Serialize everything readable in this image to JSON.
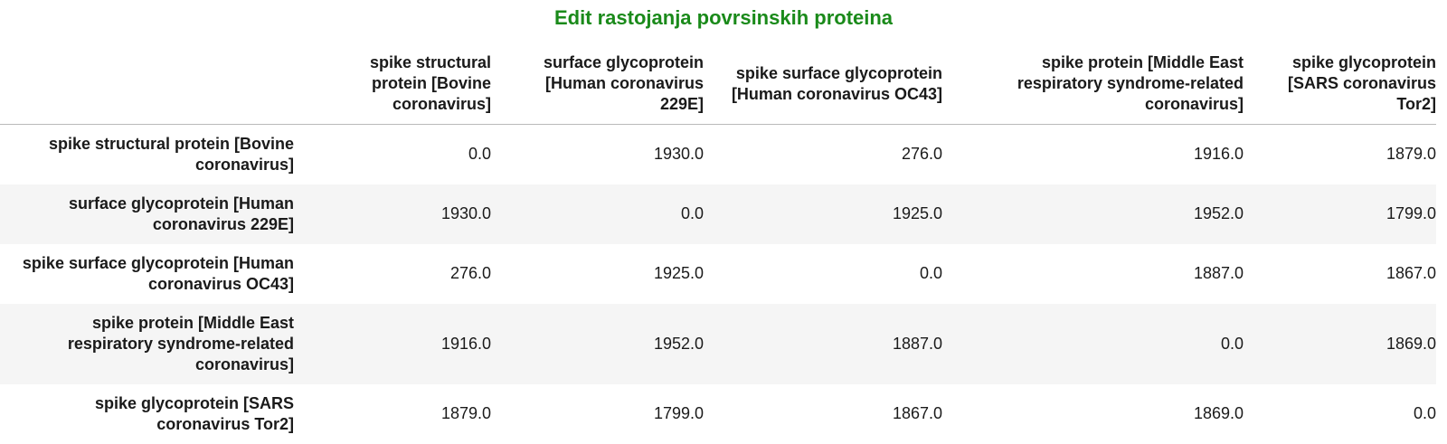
{
  "title": "Edit rastojanja povrsinskih proteina",
  "columns": [
    "spike structural protein [Bovine coronavirus]",
    "surface glycoprotein [Human coronavirus 229E]",
    "spike surface glycoprotein [Human coronavirus OC43]",
    "spike protein [Middle East respiratory syndrome-related coronavirus]",
    "spike glycoprotein [SARS coronavirus Tor2]"
  ],
  "rows": [
    {
      "label": "spike structural protein [Bovine coronavirus]",
      "values": [
        "0.0",
        "1930.0",
        "276.0",
        "1916.0",
        "1879.0"
      ]
    },
    {
      "label": "surface glycoprotein [Human coronavirus 229E]",
      "values": [
        "1930.0",
        "0.0",
        "1925.0",
        "1952.0",
        "1799.0"
      ]
    },
    {
      "label": "spike surface glycoprotein [Human coronavirus OC43]",
      "values": [
        "276.0",
        "1925.0",
        "0.0",
        "1887.0",
        "1867.0"
      ]
    },
    {
      "label": "spike protein [Middle East respiratory syndrome-related coronavirus]",
      "values": [
        "1916.0",
        "1952.0",
        "1887.0",
        "0.0",
        "1869.0"
      ]
    },
    {
      "label": "spike glycoprotein [SARS coronavirus Tor2]",
      "values": [
        "1879.0",
        "1799.0",
        "1867.0",
        "1869.0",
        "0.0"
      ]
    }
  ]
}
